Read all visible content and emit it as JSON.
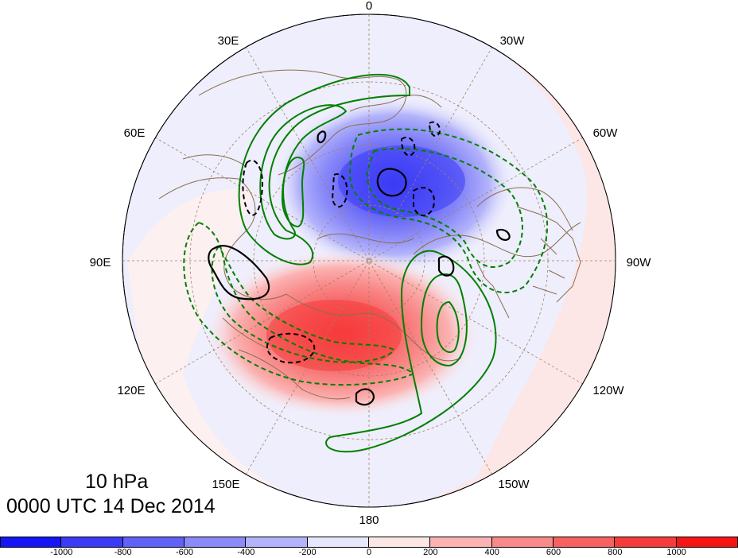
{
  "map": {
    "projection": "north polar stereographic",
    "longitude_labels": [
      {
        "id": "lon-0",
        "text": "0"
      },
      {
        "id": "lon-30w",
        "text": "30W"
      },
      {
        "id": "lon-60w",
        "text": "60W"
      },
      {
        "id": "lon-90w",
        "text": "90W"
      },
      {
        "id": "lon-120w",
        "text": "120W"
      },
      {
        "id": "lon-150w",
        "text": "150W"
      },
      {
        "id": "lon-180",
        "text": "180"
      },
      {
        "id": "lon-150e",
        "text": "150E"
      },
      {
        "id": "lon-120e",
        "text": "120E"
      },
      {
        "id": "lon-90e",
        "text": "90E"
      },
      {
        "id": "lon-60e",
        "text": "60E"
      },
      {
        "id": "lon-30e",
        "text": "30E"
      }
    ],
    "colors": {
      "negative_strong": "#0000ff",
      "positive_strong": "#ff0000",
      "contour_green": "#008000",
      "contour_black": "#000000",
      "coastline": "#8b6e4e"
    }
  },
  "title": {
    "level": "10 hPa",
    "time": "0000 UTC 14 Dec 2014"
  },
  "colorbar": {
    "bins": [
      {
        "color": "#1515f5"
      },
      {
        "color": "#3b3bf6"
      },
      {
        "color": "#6161f8"
      },
      {
        "color": "#8a8af9"
      },
      {
        "color": "#b3b3fb"
      },
      {
        "color": "#e6e6fd"
      },
      {
        "color": "#fde6e6"
      },
      {
        "color": "#fbb3b3"
      },
      {
        "color": "#f98a8a"
      },
      {
        "color": "#f86161"
      },
      {
        "color": "#f63b3b"
      },
      {
        "color": "#f51515"
      }
    ],
    "tick_labels": [
      "-1000",
      "-800",
      "-600",
      "-400",
      "-200",
      "0",
      "200",
      "400",
      "600",
      "800",
      "1000"
    ]
  }
}
